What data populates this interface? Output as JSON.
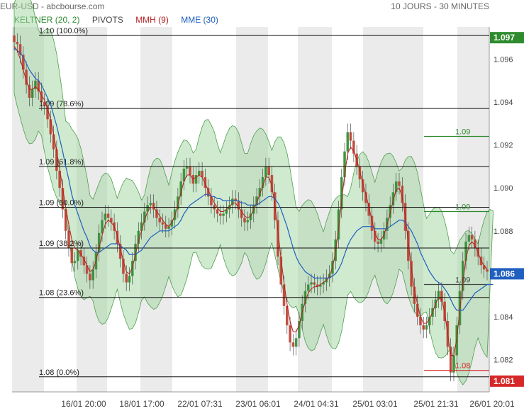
{
  "header": {
    "symbol": "EUR-USD - abcbourse.com",
    "period": "10 JOURS - 30 MINUTES"
  },
  "legend": {
    "keltner": {
      "label": "KELTNER (20, 2)",
      "color": "#2e8b2e"
    },
    "pivots": {
      "label": "PIVOTS",
      "color": "#444444"
    },
    "mmh": {
      "label": "MMH (9)",
      "color": "#b22222"
    },
    "mme": {
      "label": "MME (30)",
      "color": "#1f5fbf"
    }
  },
  "chart_data": {
    "type": "line",
    "ylim": [
      1.0805,
      1.0975
    ],
    "y_ticks": [
      1.082,
      1.084,
      1.086,
      1.088,
      1.09,
      1.092,
      1.094,
      1.096
    ],
    "y_tick_labels": [
      "1.082",
      "1.084",
      "1.086",
      "1.088",
      "1.090",
      "1.092",
      "1.094",
      "1.096"
    ],
    "x_labels": [
      "16/01 20:00",
      "18/01 17:00",
      "22/01 07:31",
      "23/01 06:01",
      "24/01 04:31",
      "25/01 03:01",
      "25/01 21:31",
      "26/01 20:01"
    ],
    "fib_levels": [
      {
        "value": 1.0971,
        "label": "1.10  (100.0%)"
      },
      {
        "value": 1.0937,
        "label": "1.09  (78.6%)"
      },
      {
        "value": 1.091,
        "label": "1.09  (61.8%)"
      },
      {
        "value": 1.0891,
        "label": "1.09  (50.0%)"
      },
      {
        "value": 1.0872,
        "label": "1.09  (38.2%)"
      },
      {
        "value": 1.0849,
        "label": "1.08  (23.6%)"
      },
      {
        "value": 1.0812,
        "label": "1.08  (0.0%)"
      }
    ],
    "pivot_levels": [
      {
        "value": 1.0924,
        "label": "1.09",
        "color": "#2e8b2e"
      },
      {
        "value": 1.0889,
        "label": "1.09",
        "color": "#2e8b2e"
      },
      {
        "value": 1.0855,
        "label": "1.09",
        "color": "#444444"
      },
      {
        "value": 1.0815,
        "label": "1.08",
        "color": "#d62828"
      }
    ],
    "price_tags": [
      {
        "value": 1.097,
        "label": "1.097",
        "color": "#2e8b2e"
      },
      {
        "value": 1.086,
        "label": "1.086",
        "color": "#1f5fbf"
      },
      {
        "value": 1.081,
        "label": "1.081",
        "color": "#d62828"
      }
    ],
    "close": [
      1.0968,
      1.0967,
      1.0962,
      1.0955,
      1.0948,
      1.0942,
      1.0946,
      1.095,
      1.0945,
      1.094,
      1.0938,
      1.0932,
      1.0925,
      1.0918,
      1.0908,
      1.09,
      1.089,
      1.088,
      1.0872,
      1.0865,
      1.0866,
      1.0871,
      1.0868,
      1.0864,
      1.086,
      1.0857,
      1.0862,
      1.087,
      1.0879,
      1.0885,
      1.0888,
      1.0886,
      1.0884,
      1.088,
      1.0874,
      1.0867,
      1.086,
      1.0856,
      1.0859,
      1.0866,
      1.0874,
      1.088,
      1.0884,
      1.0889,
      1.0892,
      1.0893,
      1.089,
      1.0886,
      1.0884,
      1.0883,
      1.0881,
      1.0882,
      1.0885,
      1.089,
      1.0896,
      1.0903,
      1.0909,
      1.091,
      1.0906,
      1.0902,
      1.0906,
      1.0908,
      1.0905,
      1.09,
      1.0896,
      1.0892,
      1.089,
      1.0888,
      1.0887,
      1.0888,
      1.089,
      1.0892,
      1.0895,
      1.0894,
      1.089,
      1.0886,
      1.0884,
      1.0885,
      1.0888,
      1.0892,
      1.0896,
      1.09,
      1.0905,
      1.091,
      1.0906,
      1.0898,
      1.0885,
      1.0868,
      1.0855,
      1.0845,
      1.0836,
      1.0828,
      1.0826,
      1.083,
      1.0838,
      1.0846,
      1.0852,
      1.0855,
      1.0856,
      1.0855,
      1.0854,
      1.0855,
      1.0856,
      1.0858,
      1.086,
      1.0866,
      1.0876,
      1.089,
      1.0905,
      1.0917,
      1.0926,
      1.0922,
      1.0916,
      1.091,
      1.0904,
      1.0898,
      1.0893,
      1.0887,
      1.088,
      1.0875,
      1.0874,
      1.0876,
      1.088,
      1.0886,
      1.0892,
      1.0898,
      1.0903,
      1.0901,
      1.0893,
      1.088,
      1.0866,
      1.0854,
      1.0846,
      1.084,
      1.0836,
      1.0834,
      1.0836,
      1.084,
      1.0844,
      1.0848,
      1.0852,
      1.0847,
      1.0838,
      1.0826,
      1.0814,
      1.0822,
      1.0836,
      1.0852,
      1.0866,
      1.0875,
      1.0878,
      1.0876,
      1.0872,
      1.0868,
      1.0864,
      1.0862,
      1.0861
    ],
    "mmh": [
      1.0966,
      1.0964,
      1.096,
      1.0955,
      1.095,
      1.0946,
      1.0946,
      1.0947,
      1.0946,
      1.0943,
      1.0941,
      1.0937,
      1.0932,
      1.0925,
      1.0917,
      1.0909,
      1.09,
      1.0891,
      1.0883,
      1.0876,
      1.0872,
      1.0871,
      1.0869,
      1.0867,
      1.0864,
      1.0861,
      1.0862,
      1.0866,
      1.0872,
      1.0878,
      1.0883,
      1.0885,
      1.0884,
      1.0882,
      1.0878,
      1.0872,
      1.0866,
      1.0861,
      1.086,
      1.0863,
      1.0869,
      1.0875,
      1.088,
      1.0885,
      1.0889,
      1.0891,
      1.0891,
      1.0889,
      1.0887,
      1.0885,
      1.0883,
      1.0882,
      1.0884,
      1.0887,
      1.0892,
      1.0898,
      1.0903,
      1.0906,
      1.0906,
      1.0904,
      1.0905,
      1.0906,
      1.0905,
      1.0902,
      1.0899,
      1.0896,
      1.0893,
      1.0891,
      1.0889,
      1.0889,
      1.089,
      1.0891,
      1.0893,
      1.0893,
      1.0891,
      1.0889,
      1.0887,
      1.0886,
      1.0887,
      1.089,
      1.0893,
      1.0897,
      1.0901,
      1.0905,
      1.0905,
      1.0901,
      1.0892,
      1.088,
      1.0867,
      1.0856,
      1.0846,
      1.0838,
      1.0833,
      1.0833,
      1.0836,
      1.0842,
      1.0847,
      1.0851,
      1.0853,
      1.0854,
      1.0854,
      1.0855,
      1.0856,
      1.0857,
      1.0859,
      1.0863,
      1.087,
      1.0881,
      1.0894,
      1.0906,
      1.0916,
      1.0919,
      1.0917,
      1.0913,
      1.0908,
      1.0902,
      1.0897,
      1.0891,
      1.0885,
      1.0879,
      1.0876,
      1.0876,
      1.0878,
      1.0883,
      1.0888,
      1.0894,
      1.0899,
      1.09,
      1.0896,
      1.0887,
      1.0875,
      1.0863,
      1.0853,
      1.0846,
      1.084,
      1.0837,
      1.0837,
      1.0839,
      1.0842,
      1.0846,
      1.0849,
      1.0848,
      1.0842,
      1.0832,
      1.0822,
      1.0822,
      1.083,
      1.0843,
      1.0856,
      1.0867,
      1.0873,
      1.0875,
      1.0873,
      1.087,
      1.0866,
      1.0864,
      1.0862
    ],
    "mme": [
      1.0965,
      1.0964,
      1.0963,
      1.0961,
      1.0958,
      1.0955,
      1.0953,
      1.0951,
      1.095,
      1.0948,
      1.0945,
      1.0942,
      1.0939,
      1.0934,
      1.0929,
      1.0923,
      1.0917,
      1.091,
      1.0904,
      1.0897,
      1.0892,
      1.0888,
      1.0884,
      1.088,
      1.0877,
      1.0873,
      1.0871,
      1.087,
      1.087,
      1.0871,
      1.0872,
      1.0873,
      1.0874,
      1.0874,
      1.0874,
      1.0873,
      1.0872,
      1.0871,
      1.0869,
      1.0869,
      1.0869,
      1.087,
      1.0871,
      1.0873,
      1.0875,
      1.0877,
      1.0878,
      1.0879,
      1.088,
      1.088,
      1.088,
      1.088,
      1.0881,
      1.0882,
      1.0883,
      1.0885,
      1.0888,
      1.089,
      1.0892,
      1.0893,
      1.0894,
      1.0895,
      1.0896,
      1.0897,
      1.0897,
      1.0896,
      1.0896,
      1.0895,
      1.0895,
      1.0894,
      1.0894,
      1.0894,
      1.0894,
      1.0894,
      1.0894,
      1.0893,
      1.0893,
      1.0892,
      1.0892,
      1.0892,
      1.0892,
      1.0893,
      1.0894,
      1.0895,
      1.0896,
      1.0896,
      1.0895,
      1.0893,
      1.089,
      1.0886,
      1.0882,
      1.0877,
      1.0872,
      1.0868,
      1.0865,
      1.0863,
      1.0861,
      1.086,
      1.0859,
      1.0858,
      1.0858,
      1.0858,
      1.0858,
      1.0858,
      1.0858,
      1.0859,
      1.086,
      1.0862,
      1.0865,
      1.0869,
      1.0873,
      1.0876,
      1.0878,
      1.088,
      1.0881,
      1.0882,
      1.0882,
      1.0882,
      1.0882,
      1.0881,
      1.0881,
      1.0881,
      1.0881,
      1.0881,
      1.0882,
      1.0883,
      1.0884,
      1.0885,
      1.0885,
      1.0884,
      1.0882,
      1.088,
      1.0877,
      1.0874,
      1.087,
      1.0867,
      1.0864,
      1.0861,
      1.0859,
      1.0857,
      1.0856,
      1.0855,
      1.0853,
      1.0851,
      1.0848,
      1.0845,
      1.0843,
      1.0843,
      1.0843,
      1.0845,
      1.0847,
      1.0849,
      1.0851,
      1.0852,
      1.0853,
      1.0854,
      1.0855,
      1.0855,
      1.0855
    ],
    "keltner_width": 0.0028
  }
}
